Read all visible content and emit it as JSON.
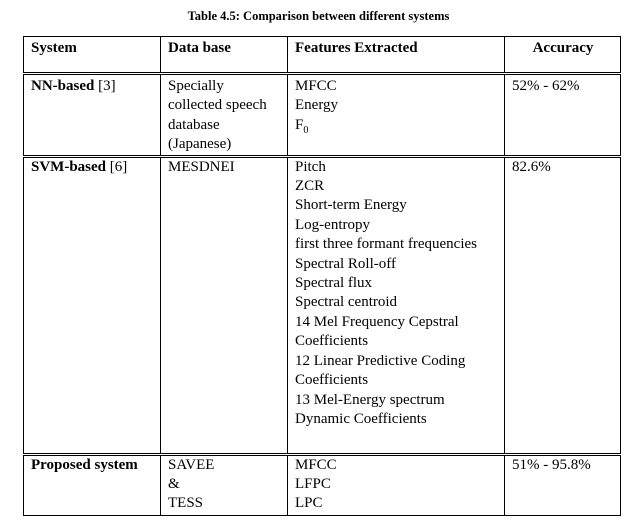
{
  "caption": "Table 4.5: Comparison between different systems",
  "headers": {
    "system": "System",
    "database": "Data base",
    "features": "Features Extracted",
    "accuracy": "Accuracy"
  },
  "rows": [
    {
      "system_name": "NN-based",
      "system_ref": "[3]",
      "database": [
        "Specially collected speech database (Japanese)"
      ],
      "features": [
        "MFCC",
        "Energy",
        "F"
      ],
      "feature_subscripts": {
        "2": "0"
      },
      "accuracy": "52% - 62%"
    },
    {
      "system_name": "SVM-based",
      "system_ref": "[6]",
      "database": [
        "MESDNEI"
      ],
      "features": [
        "Pitch",
        "ZCR",
        "Short-term Energy",
        "Log-entropy",
        "first three formant frequencies",
        "Spectral Roll-off",
        "Spectral flux",
        "Spectral centroid",
        "14 Mel Frequency Cepstral Coefficients",
        "12 Linear Predictive Coding Coefficients",
        "13 Mel-Energy spectrum Dynamic Coefficients"
      ],
      "accuracy": "82.6%"
    },
    {
      "system_name": "Proposed system",
      "system_ref": "",
      "database": [
        "SAVEE",
        "&",
        "TESS"
      ],
      "features": [
        "MFCC",
        "LFPC",
        "LPC"
      ],
      "accuracy": "51% - 95.8%"
    }
  ]
}
